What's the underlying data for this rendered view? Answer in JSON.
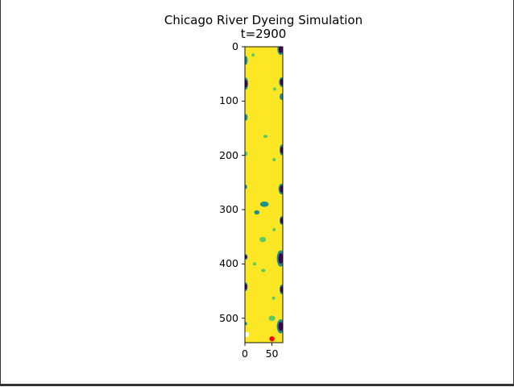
{
  "colors": {
    "background": "#fde725",
    "contour_dark": "#440154",
    "contour_mid": "#21908d",
    "contour_light": "#5ec962",
    "marker_white": "#ffffff",
    "marker_red": "#ff0000"
  },
  "chart_data": {
    "type": "heatmap",
    "title": "Chicago River Dyeing Simulation",
    "subtitle": "t=2900",
    "xlabel": "",
    "ylabel": "",
    "xlim": [
      0,
      70
    ],
    "ylim": [
      545,
      0
    ],
    "x_ticks": [
      {
        "value": 0,
        "label": "0"
      },
      {
        "value": 50,
        "label": "50"
      }
    ],
    "y_ticks": [
      {
        "value": 0,
        "label": "0"
      },
      {
        "value": 100,
        "label": "100"
      },
      {
        "value": 200,
        "label": "200"
      },
      {
        "value": 300,
        "label": "300"
      },
      {
        "value": 400,
        "label": "400"
      },
      {
        "value": 500,
        "label": "500"
      }
    ],
    "colormap": "viridis",
    "grid": false,
    "markers": [
      {
        "name": "white",
        "x": 3,
        "y": 530
      },
      {
        "name": "red",
        "x": 50,
        "y": 538
      }
    ],
    "blobs": [
      {
        "x": 66,
        "y": 5,
        "rx": 6,
        "ry": 10,
        "level": 3
      },
      {
        "x": 2,
        "y": 25,
        "rx": 3,
        "ry": 8,
        "level": 2
      },
      {
        "x": 15,
        "y": 15,
        "rx": 3,
        "ry": 3,
        "level": 1
      },
      {
        "x": 68,
        "y": 65,
        "rx": 5,
        "ry": 9,
        "level": 3
      },
      {
        "x": 2,
        "y": 68,
        "rx": 4,
        "ry": 11,
        "level": 3
      },
      {
        "x": 55,
        "y": 78,
        "rx": 3,
        "ry": 3,
        "level": 1
      },
      {
        "x": 68,
        "y": 92,
        "rx": 4,
        "ry": 6,
        "level": 2
      },
      {
        "x": 2,
        "y": 130,
        "rx": 3,
        "ry": 6,
        "level": 2
      },
      {
        "x": 38,
        "y": 165,
        "rx": 4,
        "ry": 3,
        "level": 1
      },
      {
        "x": 68,
        "y": 190,
        "rx": 4,
        "ry": 10,
        "level": 3
      },
      {
        "x": 2,
        "y": 197,
        "rx": 3,
        "ry": 4,
        "level": 1
      },
      {
        "x": 54,
        "y": 208,
        "rx": 3,
        "ry": 3,
        "level": 1
      },
      {
        "x": 68,
        "y": 262,
        "rx": 6,
        "ry": 10,
        "level": 3
      },
      {
        "x": 2,
        "y": 258,
        "rx": 2,
        "ry": 4,
        "level": 2
      },
      {
        "x": 36,
        "y": 290,
        "rx": 8,
        "ry": 5,
        "level": 2
      },
      {
        "x": 22,
        "y": 305,
        "rx": 5,
        "ry": 4,
        "level": 2
      },
      {
        "x": 68,
        "y": 320,
        "rx": 4,
        "ry": 8,
        "level": 3
      },
      {
        "x": 54,
        "y": 337,
        "rx": 3,
        "ry": 3,
        "level": 1
      },
      {
        "x": 33,
        "y": 355,
        "rx": 6,
        "ry": 5,
        "level": 1
      },
      {
        "x": 66,
        "y": 390,
        "rx": 7,
        "ry": 15,
        "level": 3
      },
      {
        "x": 2,
        "y": 387,
        "rx": 3,
        "ry": 5,
        "level": 3
      },
      {
        "x": 18,
        "y": 400,
        "rx": 3,
        "ry": 3,
        "level": 1
      },
      {
        "x": 34,
        "y": 412,
        "rx": 4,
        "ry": 3,
        "level": 1
      },
      {
        "x": 2,
        "y": 442,
        "rx": 3,
        "ry": 8,
        "level": 3
      },
      {
        "x": 68,
        "y": 447,
        "rx": 4,
        "ry": 9,
        "level": 3
      },
      {
        "x": 53,
        "y": 463,
        "rx": 3,
        "ry": 3,
        "level": 1
      },
      {
        "x": 66,
        "y": 515,
        "rx": 7,
        "ry": 13,
        "level": 3
      },
      {
        "x": 50,
        "y": 500,
        "rx": 6,
        "ry": 5,
        "level": 1
      },
      {
        "x": 2,
        "y": 510,
        "rx": 2,
        "ry": 3,
        "level": 2
      }
    ]
  }
}
